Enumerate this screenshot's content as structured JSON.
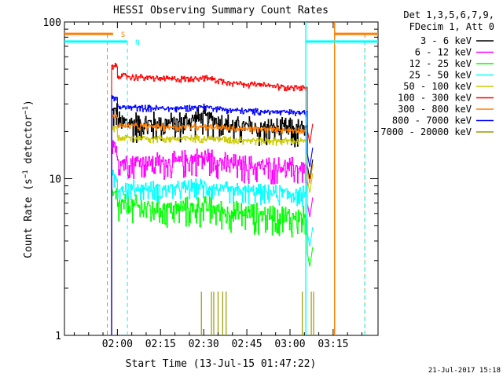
{
  "chart_data": {
    "type": "line",
    "title": "HESSI Observing Summary Count Rates",
    "xlabel": "Start Time (13-Jul-15 01:47:22)",
    "ylabel": "Count Rate (s⁻¹ detector⁻¹)",
    "ylabel_parts": [
      "Count Rate (s",
      "−1",
      " detector",
      "−1",
      ")"
    ],
    "yscale": "log",
    "ylim": [
      1,
      100
    ],
    "y_ticks": [
      {
        "value": 1,
        "label": "1"
      },
      {
        "value": 10,
        "label": "10"
      },
      {
        "value": 100,
        "label": "100"
      }
    ],
    "xlim_minutes": [
      101.6,
      210.6
    ],
    "x_ticks": [
      {
        "minutes": 120,
        "label": "02:00"
      },
      {
        "minutes": 135,
        "label": "02:15"
      },
      {
        "minutes": 150,
        "label": "02:30"
      },
      {
        "minutes": 165,
        "label": "02:45"
      },
      {
        "minutes": 180,
        "label": "03:00"
      },
      {
        "minutes": 195,
        "label": "03:15"
      }
    ],
    "legend": {
      "title_lines": [
        "Det 1,3,5,6,7,9,",
        "FDecim 1, Att 0"
      ],
      "placement": "right"
    },
    "series": [
      {
        "name": "3 - 6 keV",
        "color": "#000000",
        "level_start": 24,
        "level_end": 21,
        "noise": 0.22,
        "bump": 0.12
      },
      {
        "name": "6 - 12 keV",
        "color": "#ff00ff",
        "level_start": 13.5,
        "level_end": 12,
        "noise": 0.2,
        "bump": 0.1
      },
      {
        "name": "12 - 25 keV",
        "color": "#00ff00",
        "level_start": 7,
        "level_end": 5.8,
        "noise": 0.22,
        "bump": 0.05
      },
      {
        "name": "25 - 50 keV",
        "color": "#00ffff",
        "level_start": 9,
        "level_end": 8.2,
        "noise": 0.15,
        "bump": 0.06
      },
      {
        "name": "50 - 100 keV",
        "color": "#cccc00",
        "level_start": 18.5,
        "level_end": 17.5,
        "noise": 0.06,
        "bump": 0.02
      },
      {
        "name": "100 - 300 keV",
        "color": "#ff0000",
        "level_start": 46,
        "level_end": 38,
        "noise": 0.05,
        "bump": 0.05
      },
      {
        "name": "300 - 800 keV",
        "color": "#ff7f00",
        "level_start": 22,
        "level_end": 20.5,
        "noise": 0.05,
        "bump": 0.02
      },
      {
        "name": "800 - 7000 keV",
        "color": "#0000ff",
        "level_start": 29,
        "level_end": 26.5,
        "noise": 0.05,
        "bump": 0.04
      },
      {
        "name": "7000 - 20000 keV",
        "color": "#999900",
        "level_start": 1,
        "level_end": 1,
        "noise": 0,
        "bump": 0
      }
    ],
    "data_interval_minutes": [
      118,
      186
    ],
    "flags": [
      {
        "label": "S",
        "color": "#ff7f00",
        "level": 84,
        "segments": [
          [
            101.6,
            118.5
          ],
          [
            195.5,
            210.6
          ]
        ],
        "dashed_lines": [
          116.5,
          206
        ]
      },
      {
        "label": "N",
        "color": "#00ffff",
        "level": 75,
        "segments": [
          [
            101.6,
            123.5
          ],
          [
            185.5,
            210.6
          ]
        ],
        "dashed_lines": [
          123.5,
          206
        ]
      }
    ],
    "vertical_lines": [
      {
        "minutes": 185.5,
        "color": "#00ffff",
        "style": "solid"
      },
      {
        "minutes": 195.5,
        "color": "#ff7f00",
        "style": "solid"
      }
    ]
  },
  "footer": {
    "timestamp": "21-Jul-2017 15:18"
  }
}
